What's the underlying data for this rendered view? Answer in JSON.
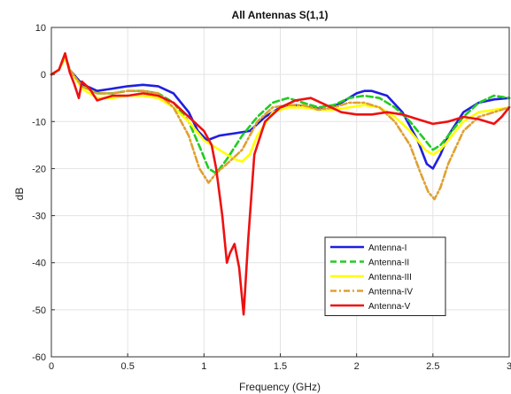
{
  "chart_data": {
    "type": "line",
    "title": "All Antennas S(1,1)",
    "xlabel": "Frequency (GHz)",
    "ylabel": "dB",
    "xlim": [
      0,
      3
    ],
    "ylim": [
      -60,
      10
    ],
    "xticks": [
      0,
      0.5,
      1,
      1.5,
      2,
      2.5,
      3
    ],
    "xtick_labels": [
      "0",
      "0.5",
      "1",
      "1.5",
      "2",
      "2.5",
      "3"
    ],
    "yticks": [
      10,
      0,
      -10,
      -20,
      -30,
      -40,
      -50,
      -60
    ],
    "ytick_labels": [
      "10",
      "0",
      "-10",
      "-20",
      "-30",
      "-40",
      "-50",
      "-60"
    ],
    "grid": true,
    "legend_position": "bottom-right",
    "series": [
      {
        "name": "Antenna-I",
        "color": "#1f1fe0",
        "dash": "solid",
        "points": [
          [
            0,
            0
          ],
          [
            0.05,
            1
          ],
          [
            0.09,
            4
          ],
          [
            0.12,
            1
          ],
          [
            0.2,
            -2
          ],
          [
            0.3,
            -3.5
          ],
          [
            0.4,
            -3
          ],
          [
            0.5,
            -2.5
          ],
          [
            0.6,
            -2.2
          ],
          [
            0.7,
            -2.5
          ],
          [
            0.8,
            -4
          ],
          [
            0.9,
            -8
          ],
          [
            0.96,
            -12
          ],
          [
            1.02,
            -14
          ],
          [
            1.1,
            -13
          ],
          [
            1.2,
            -12.5
          ],
          [
            1.3,
            -12
          ],
          [
            1.4,
            -9
          ],
          [
            1.5,
            -7
          ],
          [
            1.6,
            -6.5
          ],
          [
            1.7,
            -7
          ],
          [
            1.8,
            -7.5
          ],
          [
            1.9,
            -6
          ],
          [
            2.0,
            -4
          ],
          [
            2.05,
            -3.5
          ],
          [
            2.1,
            -3.5
          ],
          [
            2.2,
            -4.5
          ],
          [
            2.3,
            -8
          ],
          [
            2.4,
            -14
          ],
          [
            2.46,
            -19
          ],
          [
            2.5,
            -20
          ],
          [
            2.55,
            -17
          ],
          [
            2.6,
            -13
          ],
          [
            2.7,
            -8
          ],
          [
            2.8,
            -6
          ],
          [
            2.9,
            -5.3
          ],
          [
            3.0,
            -5
          ]
        ]
      },
      {
        "name": "Antenna-II",
        "color": "#22cc22",
        "dash": "dashed",
        "points": [
          [
            0,
            0
          ],
          [
            0.05,
            1
          ],
          [
            0.09,
            4
          ],
          [
            0.12,
            1
          ],
          [
            0.2,
            -2.5
          ],
          [
            0.3,
            -4
          ],
          [
            0.4,
            -4
          ],
          [
            0.5,
            -3.5
          ],
          [
            0.6,
            -3.5
          ],
          [
            0.7,
            -4
          ],
          [
            0.8,
            -6
          ],
          [
            0.9,
            -10
          ],
          [
            0.98,
            -16
          ],
          [
            1.03,
            -20
          ],
          [
            1.08,
            -21
          ],
          [
            1.15,
            -18
          ],
          [
            1.25,
            -13
          ],
          [
            1.35,
            -9
          ],
          [
            1.45,
            -6
          ],
          [
            1.55,
            -5
          ],
          [
            1.65,
            -6
          ],
          [
            1.75,
            -7
          ],
          [
            1.85,
            -6.5
          ],
          [
            1.95,
            -5
          ],
          [
            2.05,
            -4.5
          ],
          [
            2.15,
            -5
          ],
          [
            2.25,
            -7
          ],
          [
            2.35,
            -10
          ],
          [
            2.45,
            -14
          ],
          [
            2.5,
            -16
          ],
          [
            2.55,
            -15
          ],
          [
            2.6,
            -13
          ],
          [
            2.7,
            -9
          ],
          [
            2.8,
            -6
          ],
          [
            2.9,
            -4.5
          ],
          [
            3.0,
            -5
          ]
        ]
      },
      {
        "name": "Antenna-III",
        "color": "#ffff00",
        "dash": "solid",
        "points": [
          [
            0,
            0
          ],
          [
            0.05,
            1
          ],
          [
            0.09,
            3.5
          ],
          [
            0.12,
            1
          ],
          [
            0.2,
            -3
          ],
          [
            0.3,
            -5
          ],
          [
            0.4,
            -5
          ],
          [
            0.5,
            -4.5
          ],
          [
            0.6,
            -4.5
          ],
          [
            0.7,
            -5
          ],
          [
            0.8,
            -7
          ],
          [
            0.9,
            -10
          ],
          [
            1.0,
            -14
          ],
          [
            1.1,
            -16
          ],
          [
            1.2,
            -18
          ],
          [
            1.25,
            -18.5
          ],
          [
            1.3,
            -17
          ],
          [
            1.35,
            -13
          ],
          [
            1.45,
            -8
          ],
          [
            1.55,
            -7
          ],
          [
            1.65,
            -7
          ],
          [
            1.75,
            -7.5
          ],
          [
            1.85,
            -7.5
          ],
          [
            1.95,
            -7
          ],
          [
            2.05,
            -6.5
          ],
          [
            2.15,
            -7
          ],
          [
            2.25,
            -9
          ],
          [
            2.35,
            -12
          ],
          [
            2.45,
            -16
          ],
          [
            2.5,
            -17
          ],
          [
            2.55,
            -16
          ],
          [
            2.6,
            -14
          ],
          [
            2.7,
            -10
          ],
          [
            2.8,
            -8
          ],
          [
            2.9,
            -7.5
          ],
          [
            3.0,
            -7
          ]
        ]
      },
      {
        "name": "Antenna-IV",
        "color": "#e0a030",
        "dash": "dashdot",
        "points": [
          [
            0,
            0
          ],
          [
            0.05,
            1
          ],
          [
            0.09,
            4
          ],
          [
            0.12,
            1
          ],
          [
            0.2,
            -2.5
          ],
          [
            0.3,
            -4
          ],
          [
            0.4,
            -4
          ],
          [
            0.5,
            -3.5
          ],
          [
            0.6,
            -3.5
          ],
          [
            0.7,
            -4
          ],
          [
            0.8,
            -7
          ],
          [
            0.9,
            -13
          ],
          [
            0.97,
            -20
          ],
          [
            1.03,
            -23
          ],
          [
            1.08,
            -21
          ],
          [
            1.15,
            -19
          ],
          [
            1.25,
            -16
          ],
          [
            1.35,
            -10
          ],
          [
            1.45,
            -7
          ],
          [
            1.55,
            -6.5
          ],
          [
            1.65,
            -6.5
          ],
          [
            1.75,
            -7.5
          ],
          [
            1.85,
            -7
          ],
          [
            1.95,
            -6
          ],
          [
            2.05,
            -6
          ],
          [
            2.15,
            -7
          ],
          [
            2.25,
            -10
          ],
          [
            2.35,
            -15
          ],
          [
            2.42,
            -21
          ],
          [
            2.47,
            -25
          ],
          [
            2.51,
            -26.5
          ],
          [
            2.55,
            -24
          ],
          [
            2.6,
            -19
          ],
          [
            2.7,
            -12
          ],
          [
            2.8,
            -9
          ],
          [
            2.9,
            -8
          ],
          [
            3.0,
            -7
          ]
        ]
      },
      {
        "name": "Antenna-V",
        "color": "#ee1111",
        "dash": "solid",
        "points": [
          [
            0,
            0
          ],
          [
            0.05,
            1
          ],
          [
            0.09,
            4.5
          ],
          [
            0.12,
            0.5
          ],
          [
            0.15,
            -2
          ],
          [
            0.17,
            -4
          ],
          [
            0.18,
            -5
          ],
          [
            0.2,
            -1.5
          ],
          [
            0.25,
            -3
          ],
          [
            0.3,
            -5.5
          ],
          [
            0.4,
            -4.5
          ],
          [
            0.5,
            -4.5
          ],
          [
            0.6,
            -4
          ],
          [
            0.7,
            -4.5
          ],
          [
            0.8,
            -6
          ],
          [
            0.9,
            -9
          ],
          [
            1.0,
            -12
          ],
          [
            1.05,
            -15
          ],
          [
            1.08,
            -20
          ],
          [
            1.12,
            -30
          ],
          [
            1.15,
            -40
          ],
          [
            1.17,
            -38
          ],
          [
            1.2,
            -36
          ],
          [
            1.23,
            -41
          ],
          [
            1.26,
            -51
          ],
          [
            1.29,
            -35
          ],
          [
            1.33,
            -17
          ],
          [
            1.4,
            -10
          ],
          [
            1.5,
            -7
          ],
          [
            1.6,
            -5.5
          ],
          [
            1.7,
            -5
          ],
          [
            1.8,
            -6.5
          ],
          [
            1.9,
            -8
          ],
          [
            2.0,
            -8.5
          ],
          [
            2.1,
            -8.5
          ],
          [
            2.2,
            -8
          ],
          [
            2.3,
            -8.5
          ],
          [
            2.4,
            -9.5
          ],
          [
            2.5,
            -10.5
          ],
          [
            2.6,
            -10
          ],
          [
            2.7,
            -9
          ],
          [
            2.8,
            -9.5
          ],
          [
            2.9,
            -10.5
          ],
          [
            2.95,
            -9
          ],
          [
            3.0,
            -7
          ]
        ]
      }
    ]
  }
}
